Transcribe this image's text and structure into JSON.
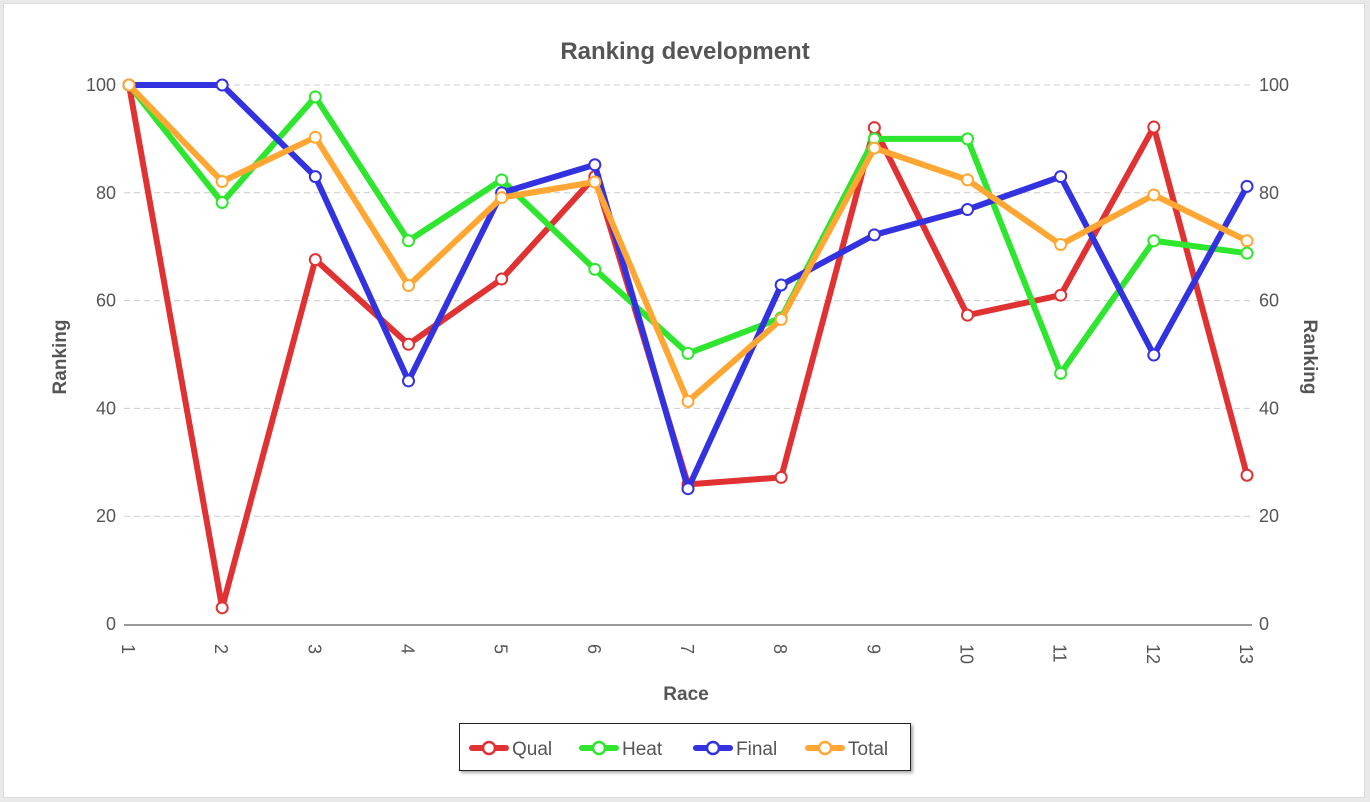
{
  "chart_data": {
    "type": "line",
    "title": "Ranking development",
    "xlabel": "Race",
    "ylabel": "Ranking",
    "ylabel_right": "Ranking",
    "categories": [
      "1",
      "2",
      "3",
      "4",
      "5",
      "6",
      "7",
      "8",
      "9",
      "10",
      "11",
      "12",
      "13"
    ],
    "ylim": [
      0,
      100
    ],
    "yticks": [
      "0",
      "20",
      "40",
      "60",
      "80",
      "100"
    ],
    "grid": "horizontal dashed",
    "legend_position": "bottom-center",
    "series": [
      {
        "name": "Qual",
        "color": "#e03232",
        "values": [
          100,
          3,
          67.6,
          51.9,
          64,
          83,
          25.9,
          27.2,
          92.1,
          57.3,
          61,
          92.2,
          27.6
        ]
      },
      {
        "name": "Heat",
        "color": "#2ee62e",
        "values": [
          100,
          78.2,
          97.8,
          71.1,
          82.4,
          65.8,
          50.2,
          56.8,
          90,
          90,
          46.5,
          71.1,
          68.8
        ]
      },
      {
        "name": "Final",
        "color": "#3232e0",
        "values": [
          100,
          100,
          83,
          45.1,
          80,
          85.2,
          25.1,
          62.9,
          72.2,
          76.9,
          83,
          49.9,
          81.2
        ]
      },
      {
        "name": "Total",
        "color": "#ffa732",
        "values": [
          100,
          82.1,
          90.3,
          62.8,
          79.1,
          82,
          41.3,
          56.5,
          88.3,
          82.4,
          70.4,
          79.6,
          71.1
        ]
      }
    ]
  }
}
